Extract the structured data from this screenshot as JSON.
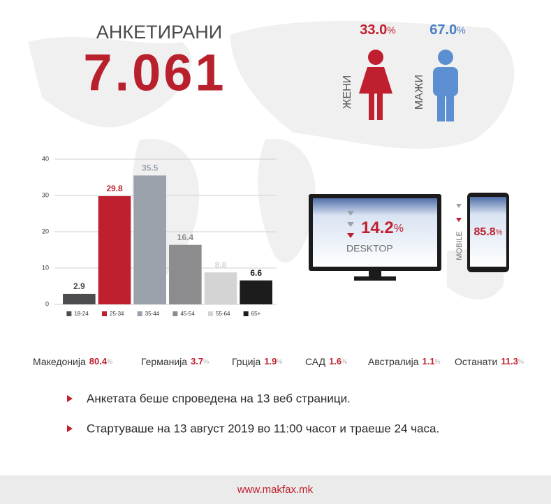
{
  "header": {
    "title": "АНКЕТИРАНИ",
    "total": "7.061"
  },
  "gender": [
    {
      "label": "ЖЕНИ",
      "value": "33.0",
      "unit": "%"
    },
    {
      "label": "МАЖИ",
      "value": "67.0",
      "unit": "%"
    }
  ],
  "devices": [
    {
      "label": "DESKTOP",
      "value": "14.2",
      "unit": "%"
    },
    {
      "label": "MOBILE",
      "value": "85.8",
      "unit": "%"
    }
  ],
  "countries": [
    {
      "name": "Македонија",
      "value": "80.4",
      "unit": "%"
    },
    {
      "name": "Германија",
      "value": "3.7",
      "unit": "%"
    },
    {
      "name": "Грција",
      "value": "1.9",
      "unit": "%"
    },
    {
      "name": "САД",
      "value": "1.6",
      "unit": "%"
    },
    {
      "name": "Австралија",
      "value": "1.1",
      "unit": "%"
    },
    {
      "name": "Останати",
      "value": "11.3",
      "unit": "%"
    }
  ],
  "notes": [
    "Анкетата беше спроведена на 13 веб страници.",
    "Стартуваше на 13 август 2019 во 11:00 часот и траеше 24 часа."
  ],
  "footer": {
    "url": "www.makfax.mk"
  },
  "chart_data": {
    "type": "bar",
    "categories": [
      "18-24",
      "25-34",
      "35-44",
      "45-54",
      "55-64",
      "65+"
    ],
    "values": [
      2.9,
      29.8,
      35.5,
      16.4,
      8.8,
      6.6
    ],
    "colors": [
      "#4d4d4f",
      "#c01f2f",
      "#9aa1aa",
      "#8c8c8e",
      "#d4d4d4",
      "#1c1c1c"
    ],
    "ylim": [
      0,
      40
    ],
    "yticks": [
      0,
      10,
      20,
      30,
      40
    ],
    "grid": true
  }
}
